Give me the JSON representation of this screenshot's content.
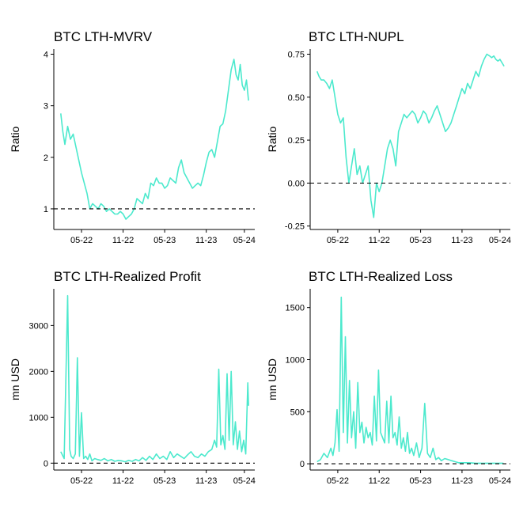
{
  "colors": {
    "series": "#4ce9cd",
    "axis": "#000000",
    "background": "#ffffff"
  },
  "chart_data": [
    {
      "type": "line",
      "title": "BTC LTH-MVRV",
      "ylabel": "Ratio",
      "ylim": [
        0.6,
        4.1
      ],
      "xlim": [
        0,
        29
      ],
      "yticks": [
        1,
        2,
        3,
        4
      ],
      "ytick_labels": [
        "1",
        "2",
        "3",
        "4"
      ],
      "xticks": [
        4,
        10,
        16,
        22,
        27.5
      ],
      "xtick_labels": [
        "05-22",
        "11-22",
        "05-23",
        "11-23",
        "05-24"
      ],
      "reference_line": 1,
      "grid": false,
      "x": [
        1,
        1.3,
        1.6,
        2,
        2.4,
        2.8,
        3.2,
        3.6,
        4,
        4.4,
        4.8,
        5.2,
        5.6,
        6,
        6.4,
        6.8,
        7.2,
        7.6,
        8,
        8.4,
        8.8,
        9.2,
        9.6,
        10,
        10.4,
        10.8,
        11.2,
        11.6,
        12,
        12.4,
        12.8,
        13.2,
        13.6,
        14,
        14.4,
        14.8,
        15.2,
        15.6,
        16,
        16.4,
        16.8,
        17.2,
        17.6,
        18,
        18.4,
        18.8,
        19.2,
        19.6,
        20,
        20.4,
        20.8,
        21.2,
        21.6,
        22,
        22.4,
        22.8,
        23.2,
        23.6,
        24,
        24.4,
        24.8,
        25.2,
        25.6,
        26,
        26.3,
        26.6,
        26.9,
        27.2,
        27.5,
        27.8,
        28.1
      ],
      "y": [
        2.85,
        2.5,
        2.25,
        2.6,
        2.35,
        2.45,
        2.2,
        1.95,
        1.7,
        1.5,
        1.3,
        1.0,
        1.1,
        1.05,
        1.0,
        1.1,
        1.05,
        0.95,
        1.0,
        0.95,
        0.9,
        0.9,
        0.95,
        0.9,
        0.8,
        0.85,
        0.9,
        1.0,
        1.2,
        1.15,
        1.1,
        1.3,
        1.2,
        1.5,
        1.45,
        1.6,
        1.5,
        1.5,
        1.4,
        1.45,
        1.6,
        1.55,
        1.5,
        1.8,
        1.95,
        1.7,
        1.6,
        1.5,
        1.4,
        1.45,
        1.5,
        1.45,
        1.65,
        1.9,
        2.1,
        2.15,
        2.0,
        2.3,
        2.6,
        2.65,
        2.9,
        3.3,
        3.7,
        3.9,
        3.6,
        3.5,
        3.8,
        3.4,
        3.3,
        3.5,
        3.1
      ]
    },
    {
      "type": "line",
      "title": "BTC LTH-NUPL",
      "ylabel": "Ratio",
      "ylim": [
        -0.27,
        0.78
      ],
      "xlim": [
        0,
        29
      ],
      "yticks": [
        -0.25,
        0,
        0.25,
        0.5,
        0.75
      ],
      "ytick_labels": [
        "-0.25",
        "0.00",
        "0.25",
        "0.50",
        "0.75"
      ],
      "xticks": [
        4,
        10,
        16,
        22,
        27.5
      ],
      "xtick_labels": [
        "05-22",
        "11-22",
        "05-23",
        "11-23",
        "05-24"
      ],
      "reference_line": 0,
      "grid": false,
      "x": [
        1,
        1.3,
        1.6,
        2,
        2.4,
        2.8,
        3.2,
        3.6,
        4,
        4.4,
        4.8,
        5.2,
        5.6,
        6,
        6.4,
        6.8,
        7.2,
        7.6,
        8,
        8.4,
        8.8,
        9.2,
        9.6,
        10,
        10.4,
        10.8,
        11.2,
        11.6,
        12,
        12.4,
        12.8,
        13.2,
        13.6,
        14,
        14.4,
        14.8,
        15.2,
        15.6,
        16,
        16.4,
        16.8,
        17.2,
        17.6,
        18,
        18.4,
        18.8,
        19.2,
        19.6,
        20,
        20.4,
        20.8,
        21.2,
        21.6,
        22,
        22.4,
        22.8,
        23.2,
        23.6,
        24,
        24.4,
        24.8,
        25.2,
        25.6,
        26,
        26.3,
        26.6,
        26.9,
        27.2,
        27.5,
        27.8,
        28.1
      ],
      "y": [
        0.65,
        0.62,
        0.6,
        0.6,
        0.58,
        0.55,
        0.6,
        0.5,
        0.4,
        0.35,
        0.38,
        0.15,
        0.0,
        0.1,
        0.2,
        0.05,
        0.1,
        0.0,
        0.05,
        0.1,
        -0.1,
        -0.2,
        0.0,
        -0.05,
        0.0,
        0.1,
        0.2,
        0.25,
        0.2,
        0.1,
        0.3,
        0.35,
        0.4,
        0.38,
        0.4,
        0.42,
        0.4,
        0.35,
        0.38,
        0.42,
        0.4,
        0.35,
        0.38,
        0.42,
        0.45,
        0.4,
        0.35,
        0.3,
        0.32,
        0.35,
        0.4,
        0.45,
        0.5,
        0.55,
        0.52,
        0.58,
        0.55,
        0.6,
        0.65,
        0.62,
        0.68,
        0.72,
        0.75,
        0.74,
        0.73,
        0.74,
        0.72,
        0.71,
        0.72,
        0.7,
        0.68
      ]
    },
    {
      "type": "line",
      "title": "BTC LTH-Realized Profit",
      "ylabel": "mn USD",
      "ylim": [
        -150,
        3800
      ],
      "xlim": [
        0,
        29
      ],
      "yticks": [
        0,
        1000,
        2000,
        3000
      ],
      "ytick_labels": [
        "0",
        "1000",
        "2000",
        "3000"
      ],
      "xticks": [
        4,
        10,
        16,
        22,
        27.5
      ],
      "xtick_labels": [
        "05-22",
        "11-22",
        "05-23",
        "11-23",
        "05-24"
      ],
      "reference_line": 0,
      "grid": false,
      "x": [
        1,
        1.5,
        2,
        2.3,
        2.5,
        2.8,
        3.1,
        3.4,
        3.7,
        4,
        4.3,
        4.6,
        4.9,
        5.2,
        5.5,
        5.9,
        6.3,
        6.8,
        7.3,
        7.8,
        8.3,
        8.8,
        9.3,
        9.8,
        10.3,
        10.8,
        11.3,
        11.8,
        12.3,
        12.8,
        13.3,
        13.8,
        14.3,
        14.8,
        15.3,
        15.8,
        16.3,
        16.8,
        17.3,
        17.8,
        18.3,
        18.8,
        19.3,
        19.8,
        20.3,
        20.8,
        21.3,
        21.8,
        22.3,
        22.8,
        23.2,
        23.5,
        23.8,
        24.1,
        24.4,
        24.7,
        25,
        25.3,
        25.6,
        25.9,
        26.2,
        26.5,
        26.8,
        27.1,
        27.4,
        27.7,
        28,
        28.1
      ],
      "y": [
        250,
        100,
        3650,
        300,
        150,
        100,
        200,
        2300,
        150,
        1100,
        100,
        150,
        80,
        200,
        50,
        100,
        80,
        60,
        100,
        50,
        80,
        40,
        60,
        50,
        30,
        60,
        40,
        80,
        50,
        120,
        60,
        150,
        80,
        200,
        100,
        150,
        80,
        250,
        120,
        200,
        150,
        100,
        180,
        250,
        150,
        120,
        200,
        150,
        250,
        300,
        500,
        350,
        2050,
        400,
        600,
        300,
        1950,
        500,
        2000,
        400,
        900,
        300,
        700,
        250,
        500,
        200,
        1750,
        1250
      ]
    },
    {
      "type": "line",
      "title": "BTC LTH-Realized Loss",
      "ylabel": "mn USD",
      "ylim": [
        -60,
        1680
      ],
      "xlim": [
        0,
        29
      ],
      "yticks": [
        0,
        500,
        1000,
        1500
      ],
      "ytick_labels": [
        "0",
        "500",
        "1000",
        "1500"
      ],
      "xticks": [
        4,
        10,
        16,
        22,
        27.5
      ],
      "xtick_labels": [
        "05-22",
        "11-22",
        "05-23",
        "11-23",
        "05-24"
      ],
      "reference_line": 0,
      "grid": false,
      "x": [
        1,
        1.5,
        2,
        2.5,
        3,
        3.3,
        3.6,
        3.9,
        4.2,
        4.5,
        4.8,
        5.1,
        5.4,
        5.7,
        6,
        6.3,
        6.6,
        6.9,
        7.2,
        7.5,
        7.8,
        8.1,
        8.4,
        8.7,
        9,
        9.3,
        9.6,
        9.9,
        10.2,
        10.5,
        10.8,
        11.1,
        11.4,
        11.7,
        12,
        12.3,
        12.6,
        12.9,
        13.2,
        13.5,
        13.8,
        14.1,
        14.4,
        14.7,
        15,
        15.4,
        15.8,
        16.2,
        16.6,
        17,
        17.4,
        17.8,
        18.2,
        18.6,
        19,
        19.5,
        20,
        20.5,
        21,
        21.5,
        22,
        23,
        24,
        25,
        26,
        27,
        28
      ],
      "y": [
        20,
        40,
        100,
        60,
        150,
        80,
        200,
        520,
        120,
        1600,
        300,
        1220,
        200,
        800,
        250,
        500,
        150,
        780,
        300,
        400,
        200,
        350,
        250,
        300,
        180,
        650,
        220,
        900,
        300,
        250,
        200,
        600,
        200,
        650,
        250,
        300,
        180,
        450,
        150,
        250,
        120,
        300,
        100,
        150,
        80,
        200,
        60,
        150,
        580,
        100,
        60,
        150,
        40,
        60,
        30,
        50,
        40,
        30,
        20,
        10,
        10,
        10,
        5,
        5,
        5,
        5,
        5
      ]
    }
  ]
}
